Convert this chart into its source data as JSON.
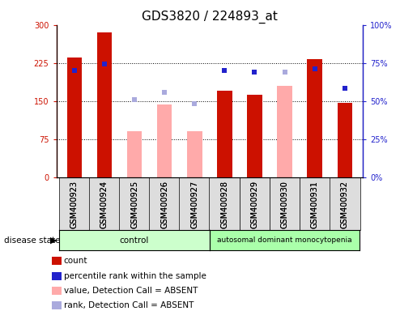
{
  "title": "GDS3820 / 224893_at",
  "samples": [
    "GSM400923",
    "GSM400924",
    "GSM400925",
    "GSM400926",
    "GSM400927",
    "GSM400928",
    "GSM400929",
    "GSM400930",
    "GSM400931",
    "GSM400932"
  ],
  "count_values": [
    235,
    285,
    null,
    null,
    null,
    170,
    163,
    null,
    232,
    147
  ],
  "absent_value": [
    null,
    null,
    90,
    143,
    90,
    null,
    null,
    180,
    null,
    null
  ],
  "present_rank": [
    70,
    74.5,
    null,
    null,
    null,
    70,
    69,
    null,
    71.3,
    58.3
  ],
  "absent_rank": [
    null,
    null,
    50.7,
    55.7,
    48.3,
    null,
    null,
    69,
    null,
    null
  ],
  "ylim_left": [
    0,
    300
  ],
  "ylim_right": [
    0,
    100
  ],
  "yticks_left": [
    0,
    75,
    150,
    225,
    300
  ],
  "yticks_right": [
    0,
    25,
    50,
    75,
    100
  ],
  "yticklabels_left": [
    "0",
    "75",
    "150",
    "225",
    "300"
  ],
  "yticklabels_right": [
    "0%",
    "25%",
    "50%",
    "75%",
    "100%"
  ],
  "color_count": "#cc1100",
  "color_absent_value": "#ffaaaa",
  "color_present_rank": "#2222cc",
  "color_absent_rank": "#aaaadd",
  "n_control": 5,
  "n_disease": 5,
  "control_label": "control",
  "disease_label": "autosomal dominant monocytopenia",
  "control_color": "#ccffcc",
  "disease_color": "#aaffaa",
  "disease_state_label": "disease state",
  "legend_items": [
    {
      "label": "count",
      "color": "#cc1100"
    },
    {
      "label": "percentile rank within the sample",
      "color": "#2222cc"
    },
    {
      "label": "value, Detection Call = ABSENT",
      "color": "#ffaaaa"
    },
    {
      "label": "rank, Detection Call = ABSENT",
      "color": "#aaaadd"
    }
  ],
  "bar_width": 0.5,
  "tick_label_size": 7,
  "title_fontsize": 11
}
